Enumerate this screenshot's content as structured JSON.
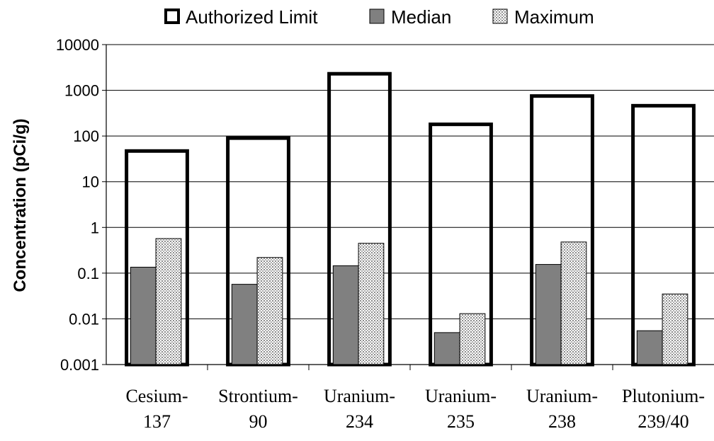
{
  "chart_data": {
    "type": "bar",
    "scale": "log",
    "ylabel": "Concentration (pCi/g)",
    "ylim": [
      0.001,
      10000
    ],
    "yticks": [
      "0.001",
      "0.01",
      "0.1",
      "1",
      "10",
      "100",
      "1000",
      "10000"
    ],
    "categories": [
      [
        "Cesium-",
        "137"
      ],
      [
        "Strontium-",
        "90"
      ],
      [
        "Uranium-",
        "234"
      ],
      [
        "Uranium-",
        "235"
      ],
      [
        "Uranium-",
        "238"
      ],
      [
        "Plutonium-",
        "239/40"
      ]
    ],
    "grid": true,
    "legend_position": "top",
    "series": [
      {
        "name": "Authorized Limit",
        "values": [
          47,
          90,
          2300,
          180,
          750,
          460
        ],
        "style": "outline",
        "color": "#000000"
      },
      {
        "name": "Median",
        "values": [
          0.135,
          0.057,
          0.145,
          0.005,
          0.155,
          0.0055
        ],
        "style": "filled",
        "color": "#808080"
      },
      {
        "name": "Maximum",
        "values": [
          0.57,
          0.22,
          0.45,
          0.013,
          0.48,
          0.035
        ],
        "style": "dotted",
        "color": "#d9d9d9"
      }
    ]
  }
}
